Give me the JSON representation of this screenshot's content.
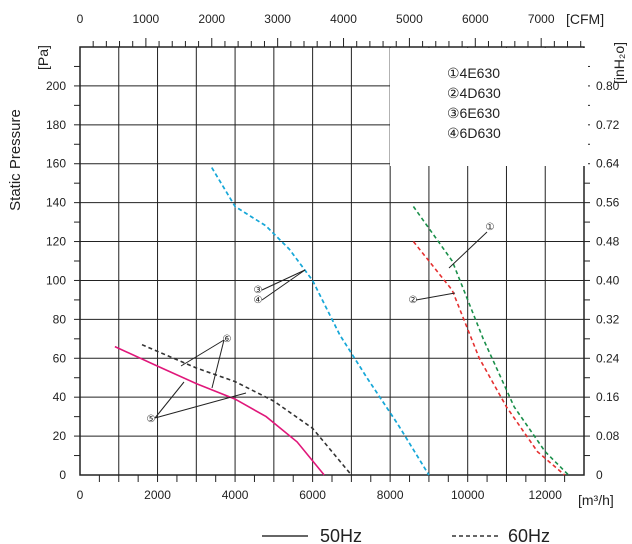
{
  "chart_data": {
    "type": "line",
    "x_primary": {
      "unit": "[m³/h]",
      "range": [
        0,
        13000
      ],
      "ticks": [
        "0",
        "2000",
        "4000",
        "6000",
        "8000",
        "10000",
        "12000"
      ],
      "tick_values": [
        0,
        2000,
        4000,
        6000,
        8000,
        10000,
        12000
      ]
    },
    "x_secondary": {
      "unit": "[CFM]",
      "range": [
        0,
        7650
      ],
      "ticks": [
        "0",
        "1000",
        "2000",
        "3000",
        "4000",
        "5000",
        "6000",
        "7000"
      ],
      "tick_values": [
        0,
        1000,
        2000,
        3000,
        4000,
        5000,
        6000,
        7000
      ]
    },
    "y_primary": {
      "unit": "[Pa]",
      "label": "Static Pressure",
      "range": [
        0,
        220
      ],
      "ticks": [
        "0",
        "20",
        "40",
        "60",
        "80",
        "100",
        "120",
        "140",
        "160",
        "180",
        "200"
      ],
      "tick_values": [
        0,
        20,
        40,
        60,
        80,
        100,
        120,
        140,
        160,
        180,
        200
      ]
    },
    "y_secondary": {
      "unit": "[inH₂o]",
      "range": [
        0,
        0.88
      ],
      "ticks": [
        "0",
        "0.08",
        "0.16",
        "0.24",
        "0.32",
        "0.40",
        "0.48",
        "0.56",
        "0.64",
        "0.72",
        "0.80"
      ],
      "tick_values": [
        0,
        0.08,
        0.16,
        0.24,
        0.32,
        0.4,
        0.48,
        0.56,
        0.64,
        0.72,
        0.8
      ]
    },
    "grid": true,
    "legend": {
      "placement": "top-right",
      "entries": [
        "①4E630",
        "②4D630",
        "③6E630",
        "④6D630"
      ]
    },
    "series": [
      {
        "name": "①4E630",
        "color": "#1a8f4a",
        "style": "dashed",
        "points": [
          [
            8600,
            138
          ],
          [
            9600,
            110
          ],
          [
            10400,
            70
          ],
          [
            11200,
            35
          ],
          [
            12000,
            12
          ],
          [
            12600,
            0
          ]
        ]
      },
      {
        "name": "②4D630",
        "color": "#e53030",
        "style": "dashed",
        "points": [
          [
            8600,
            120
          ],
          [
            9600,
            95
          ],
          [
            10300,
            60
          ],
          [
            11000,
            35
          ],
          [
            11800,
            12
          ],
          [
            12500,
            0
          ]
        ]
      },
      {
        "name": "③6E630",
        "color": "#19a8d8",
        "style": "dashed",
        "points": [
          [
            3400,
            158
          ],
          [
            4000,
            138
          ],
          [
            4800,
            128
          ],
          [
            5400,
            116
          ],
          [
            6000,
            100
          ],
          [
            6700,
            72
          ],
          [
            7400,
            50
          ],
          [
            8200,
            26
          ],
          [
            9000,
            0
          ]
        ]
      },
      {
        "name": "④6D630",
        "color": "#19a8d8",
        "style": "dashed",
        "points": [
          [
            3400,
            158
          ],
          [
            4000,
            138
          ],
          [
            4800,
            128
          ],
          [
            5400,
            116
          ],
          [
            6000,
            100
          ],
          [
            6700,
            72
          ],
          [
            7400,
            50
          ],
          [
            8200,
            26
          ],
          [
            9000,
            0
          ]
        ]
      },
      {
        "name": "50Hz",
        "color": "#e0177a",
        "style": "solid",
        "points": [
          [
            900,
            66
          ],
          [
            2000,
            56
          ],
          [
            3000,
            47
          ],
          [
            4000,
            39
          ],
          [
            4800,
            30
          ],
          [
            5600,
            17
          ],
          [
            6300,
            0
          ]
        ]
      },
      {
        "name": "60Hz",
        "color": "#333333",
        "style": "dashed",
        "points": [
          [
            1600,
            67
          ],
          [
            3000,
            55
          ],
          [
            4000,
            48
          ],
          [
            5000,
            38
          ],
          [
            6000,
            24
          ],
          [
            7000,
            0
          ]
        ]
      }
    ],
    "annotations": [
      {
        "label": "①",
        "points_to": "4E630"
      },
      {
        "label": "②",
        "points_to": "4D630"
      },
      {
        "label": "③",
        "points_to": "6E630"
      },
      {
        "label": "④",
        "points_to": "6D630"
      },
      {
        "label": "⑤",
        "points_to": "50Hz curves"
      },
      {
        "label": "⑥",
        "points_to": "60Hz curves"
      }
    ],
    "line_key": [
      {
        "label": "50Hz",
        "style": "solid"
      },
      {
        "label": "60Hz",
        "style": "dashed"
      }
    ]
  }
}
